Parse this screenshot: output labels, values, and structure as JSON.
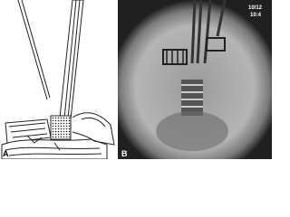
{
  "panel_a": {
    "label": "A"
  },
  "panel_b": {
    "label": "B",
    "timestamp": [
      "10/12",
      "10:4"
    ]
  }
}
